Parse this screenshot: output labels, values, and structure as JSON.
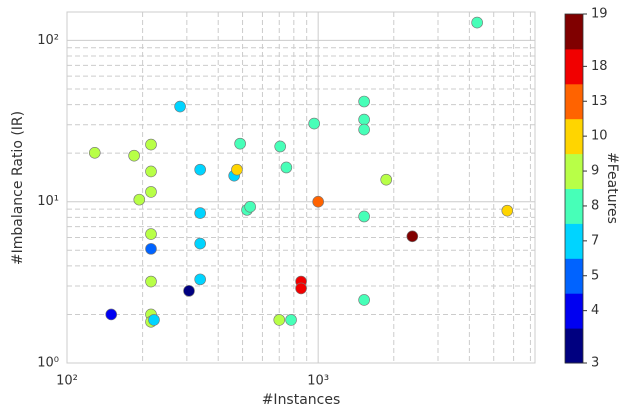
{
  "chart_data": {
    "type": "scatter",
    "x_label": "#Instances",
    "y_label": "#Imbalance Ratio (IR)",
    "log_x": true,
    "log_y": true,
    "grid": true,
    "xlim": [
      100,
      7300
    ],
    "ylim": [
      1,
      150
    ],
    "xticks": [
      {
        "value": 100,
        "label": "10²"
      },
      {
        "value": 1000,
        "label": "10³"
      }
    ],
    "yticks": [
      {
        "value": 1,
        "label": "10⁰"
      },
      {
        "value": 10,
        "label": "10¹"
      },
      {
        "value": 100,
        "label": "10²"
      }
    ],
    "xminorticks": [
      200,
      300,
      400,
      500,
      600,
      700,
      800,
      900,
      2000,
      3000,
      4000,
      5000,
      6000,
      7000
    ],
    "yminorticks": [
      2,
      3,
      4,
      5,
      6,
      7,
      8,
      9,
      20,
      30,
      40,
      50,
      60,
      70,
      80,
      90
    ],
    "series": [
      {
        "x": [
          129,
          185,
          216,
          216,
          216,
          194,
          216,
          216,
          216,
          216,
          216,
          222,
          150,
          282,
          339,
          339,
          339,
          339,
          306,
          463,
          475,
          489,
          521,
          536,
          706,
          747,
          700,
          780,
          964,
          1000,
          855,
          855,
          1524,
          1524,
          1524,
          1524,
          1524,
          1866,
          2371,
          4295,
          5662
        ],
        "values": [
          20.1,
          19.3,
          22.6,
          15.4,
          11.5,
          10.3,
          6.3,
          5.1,
          3.2,
          2.0,
          1.8,
          1.85,
          2.0,
          38.9,
          15.8,
          8.5,
          5.5,
          3.3,
          2.8,
          14.5,
          15.8,
          22.9,
          8.9,
          9.3,
          22.0,
          16.3,
          1.85,
          1.85,
          30.5,
          10,
          3.2,
          2.9,
          41.8,
          32.3,
          28.0,
          8.1,
          2.46,
          13.7,
          6.1,
          129,
          8.8
        ],
        "features": [
          9,
          9,
          9,
          9,
          9,
          9,
          9,
          5,
          9,
          9,
          9,
          7,
          4,
          7,
          7,
          7,
          7,
          7,
          3,
          7,
          10,
          8,
          8,
          8,
          8,
          8,
          9,
          8,
          8,
          13,
          18,
          18,
          8,
          8,
          8,
          8,
          8,
          9,
          19,
          8,
          10
        ]
      }
    ],
    "colorbar": {
      "label": "#Features",
      "colormap": "jet",
      "levels": [
        3,
        4,
        5,
        7,
        8,
        9,
        10,
        13,
        18,
        19
      ]
    }
  }
}
